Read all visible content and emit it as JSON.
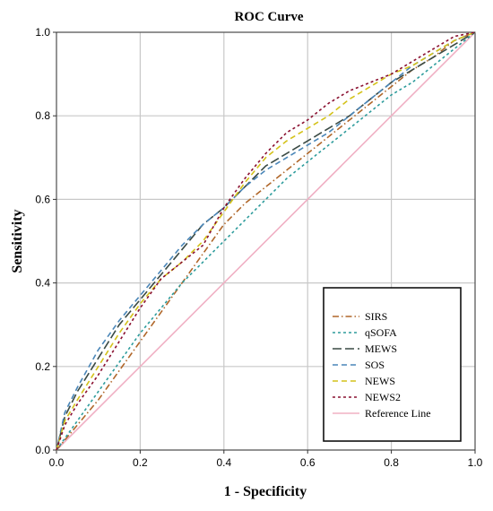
{
  "chart_data": {
    "type": "line",
    "title": "ROC Curve",
    "xlabel": "1 - Specificity",
    "ylabel": "Sensitivity",
    "xlim": [
      0.0,
      1.0
    ],
    "ylim": [
      0.0,
      1.0
    ],
    "x_ticks": [
      "0.0",
      "0.2",
      "0.4",
      "0.6",
      "0.8",
      "1.0"
    ],
    "y_ticks": [
      "0.0",
      "0.2",
      "0.4",
      "0.6",
      "0.8",
      "1.0"
    ],
    "grid": true,
    "legend_position": "bottom-right",
    "series": [
      {
        "name": "SIRS",
        "color": "#b0672a",
        "dash": "dash-dot",
        "x": [
          0.0,
          0.05,
          0.1,
          0.15,
          0.2,
          0.25,
          0.3,
          0.35,
          0.4,
          0.45,
          0.5,
          0.55,
          0.6,
          0.65,
          0.7,
          0.75,
          0.8,
          0.85,
          0.9,
          0.95,
          1.0
        ],
        "y": [
          0.0,
          0.06,
          0.12,
          0.19,
          0.26,
          0.33,
          0.4,
          0.47,
          0.54,
          0.59,
          0.63,
          0.67,
          0.71,
          0.75,
          0.79,
          0.83,
          0.87,
          0.91,
          0.94,
          0.98,
          1.0
        ]
      },
      {
        "name": "qSOFA",
        "color": "#2e9c9c",
        "dash": "short-dash",
        "x": [
          0.0,
          0.05,
          0.1,
          0.15,
          0.2,
          0.25,
          0.3,
          0.35,
          0.4,
          0.45,
          0.5,
          0.55,
          0.6,
          0.65,
          0.7,
          0.75,
          0.8,
          0.85,
          0.9,
          0.95,
          1.0
        ],
        "y": [
          0.0,
          0.07,
          0.14,
          0.21,
          0.28,
          0.34,
          0.4,
          0.45,
          0.5,
          0.55,
          0.6,
          0.65,
          0.69,
          0.73,
          0.77,
          0.81,
          0.85,
          0.88,
          0.92,
          0.96,
          1.0
        ]
      },
      {
        "name": "MEWS",
        "color": "#3a4a44",
        "dash": "long-dash",
        "x": [
          0.0,
          0.02,
          0.05,
          0.1,
          0.15,
          0.2,
          0.25,
          0.3,
          0.35,
          0.4,
          0.45,
          0.5,
          0.55,
          0.6,
          0.65,
          0.7,
          0.75,
          0.8,
          0.85,
          0.9,
          0.95,
          1.0
        ],
        "y": [
          0.0,
          0.08,
          0.14,
          0.22,
          0.3,
          0.36,
          0.42,
          0.48,
          0.54,
          0.58,
          0.63,
          0.68,
          0.71,
          0.74,
          0.77,
          0.8,
          0.84,
          0.88,
          0.91,
          0.94,
          0.97,
          1.0
        ]
      },
      {
        "name": "SOS",
        "color": "#4a86b8",
        "dash": "dash",
        "x": [
          0.0,
          0.02,
          0.05,
          0.1,
          0.15,
          0.2,
          0.25,
          0.3,
          0.35,
          0.4,
          0.45,
          0.5,
          0.55,
          0.6,
          0.65,
          0.7,
          0.75,
          0.8,
          0.85,
          0.9,
          0.95,
          1.0
        ],
        "y": [
          0.0,
          0.09,
          0.15,
          0.24,
          0.31,
          0.37,
          0.43,
          0.49,
          0.54,
          0.58,
          0.63,
          0.67,
          0.7,
          0.73,
          0.76,
          0.8,
          0.84,
          0.88,
          0.92,
          0.95,
          0.98,
          1.0
        ]
      },
      {
        "name": "NEWS",
        "color": "#d4c21a",
        "dash": "dash",
        "x": [
          0.0,
          0.02,
          0.05,
          0.1,
          0.15,
          0.2,
          0.25,
          0.3,
          0.35,
          0.4,
          0.45,
          0.5,
          0.55,
          0.6,
          0.65,
          0.7,
          0.75,
          0.8,
          0.85,
          0.9,
          0.95,
          1.0
        ],
        "y": [
          0.0,
          0.07,
          0.12,
          0.2,
          0.28,
          0.35,
          0.41,
          0.45,
          0.5,
          0.57,
          0.64,
          0.7,
          0.74,
          0.77,
          0.8,
          0.84,
          0.87,
          0.9,
          0.92,
          0.95,
          0.98,
          1.0
        ]
      },
      {
        "name": "NEWS2",
        "color": "#8a1030",
        "dash": "short-dash",
        "x": [
          0.0,
          0.02,
          0.05,
          0.1,
          0.15,
          0.2,
          0.25,
          0.3,
          0.35,
          0.4,
          0.45,
          0.5,
          0.55,
          0.6,
          0.65,
          0.7,
          0.75,
          0.8,
          0.85,
          0.9,
          0.95,
          1.0
        ],
        "y": [
          0.0,
          0.06,
          0.11,
          0.18,
          0.26,
          0.34,
          0.41,
          0.45,
          0.49,
          0.58,
          0.65,
          0.71,
          0.76,
          0.79,
          0.83,
          0.86,
          0.88,
          0.9,
          0.93,
          0.96,
          0.99,
          1.0
        ]
      },
      {
        "name": "Reference Line",
        "color": "#f0b0c4",
        "dash": "solid",
        "x": [
          0.0,
          1.0
        ],
        "y": [
          0.0,
          1.0
        ]
      }
    ]
  }
}
